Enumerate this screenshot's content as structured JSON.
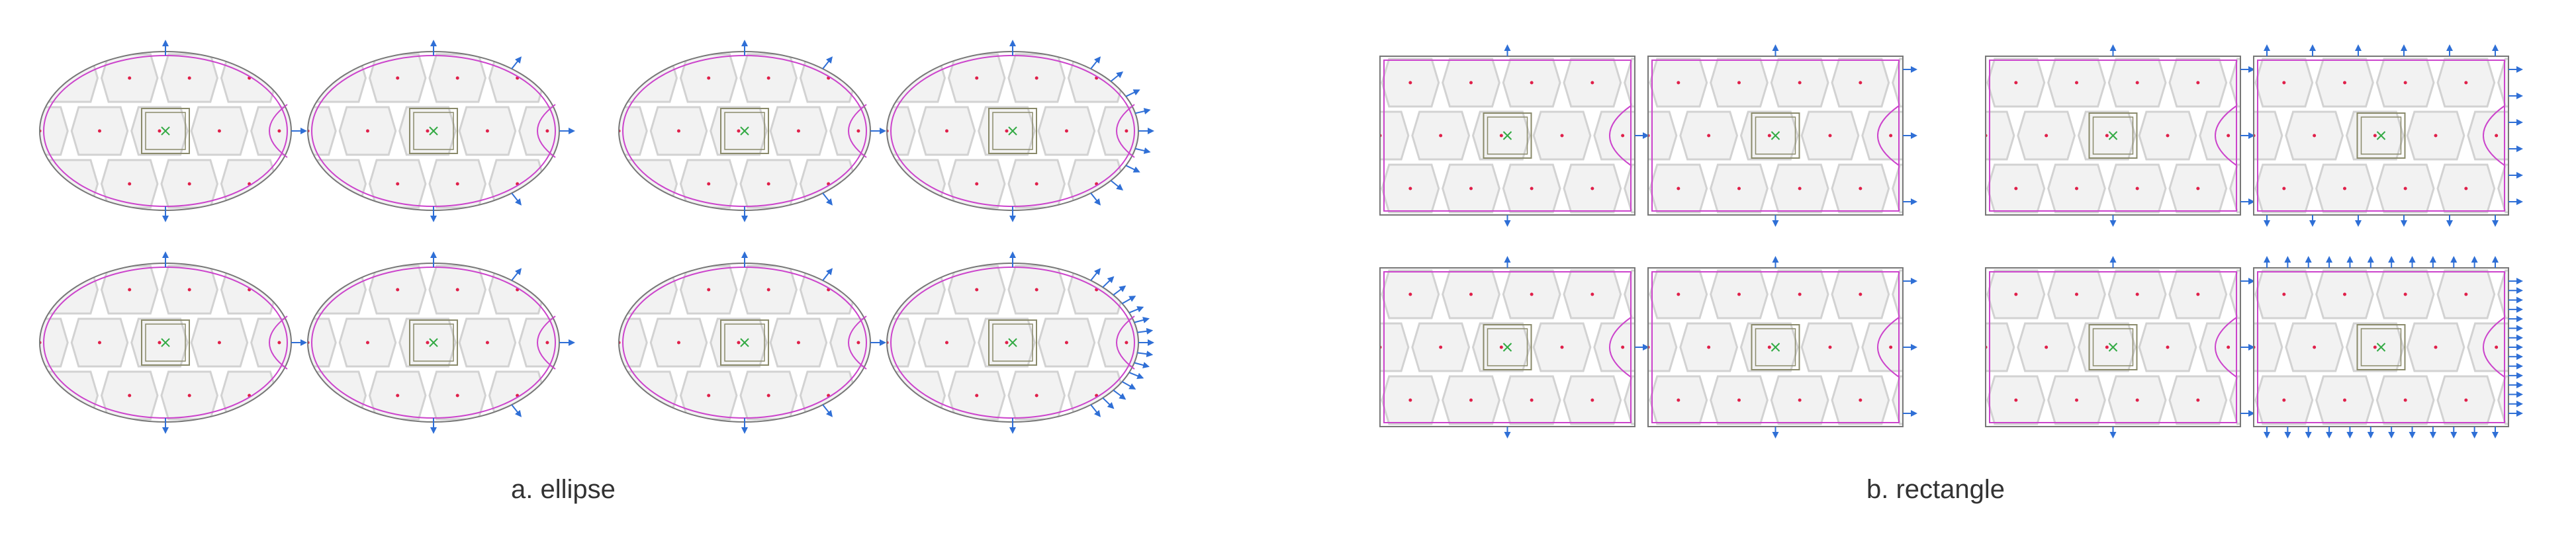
{
  "captions": {
    "ellipse": "a. ellipse",
    "rectangle": "b. rectangle"
  },
  "colors": {
    "tile_fill": "#f2f2f2",
    "tile_stroke": "#d2d2d2",
    "boundary": "#777777",
    "pink_curve": "#cc44cc",
    "force_arrow": "#2f6fd6",
    "site_dot": "#e0204a",
    "center_mark": "#33aa44",
    "center_frame": "#8a8a6a"
  },
  "variant_counts": {
    "ellipse": [
      1,
      3,
      3,
      9,
      1,
      3,
      3,
      15
    ],
    "rectangle": [
      1,
      3,
      3,
      6,
      1,
      3,
      3,
      15
    ]
  }
}
